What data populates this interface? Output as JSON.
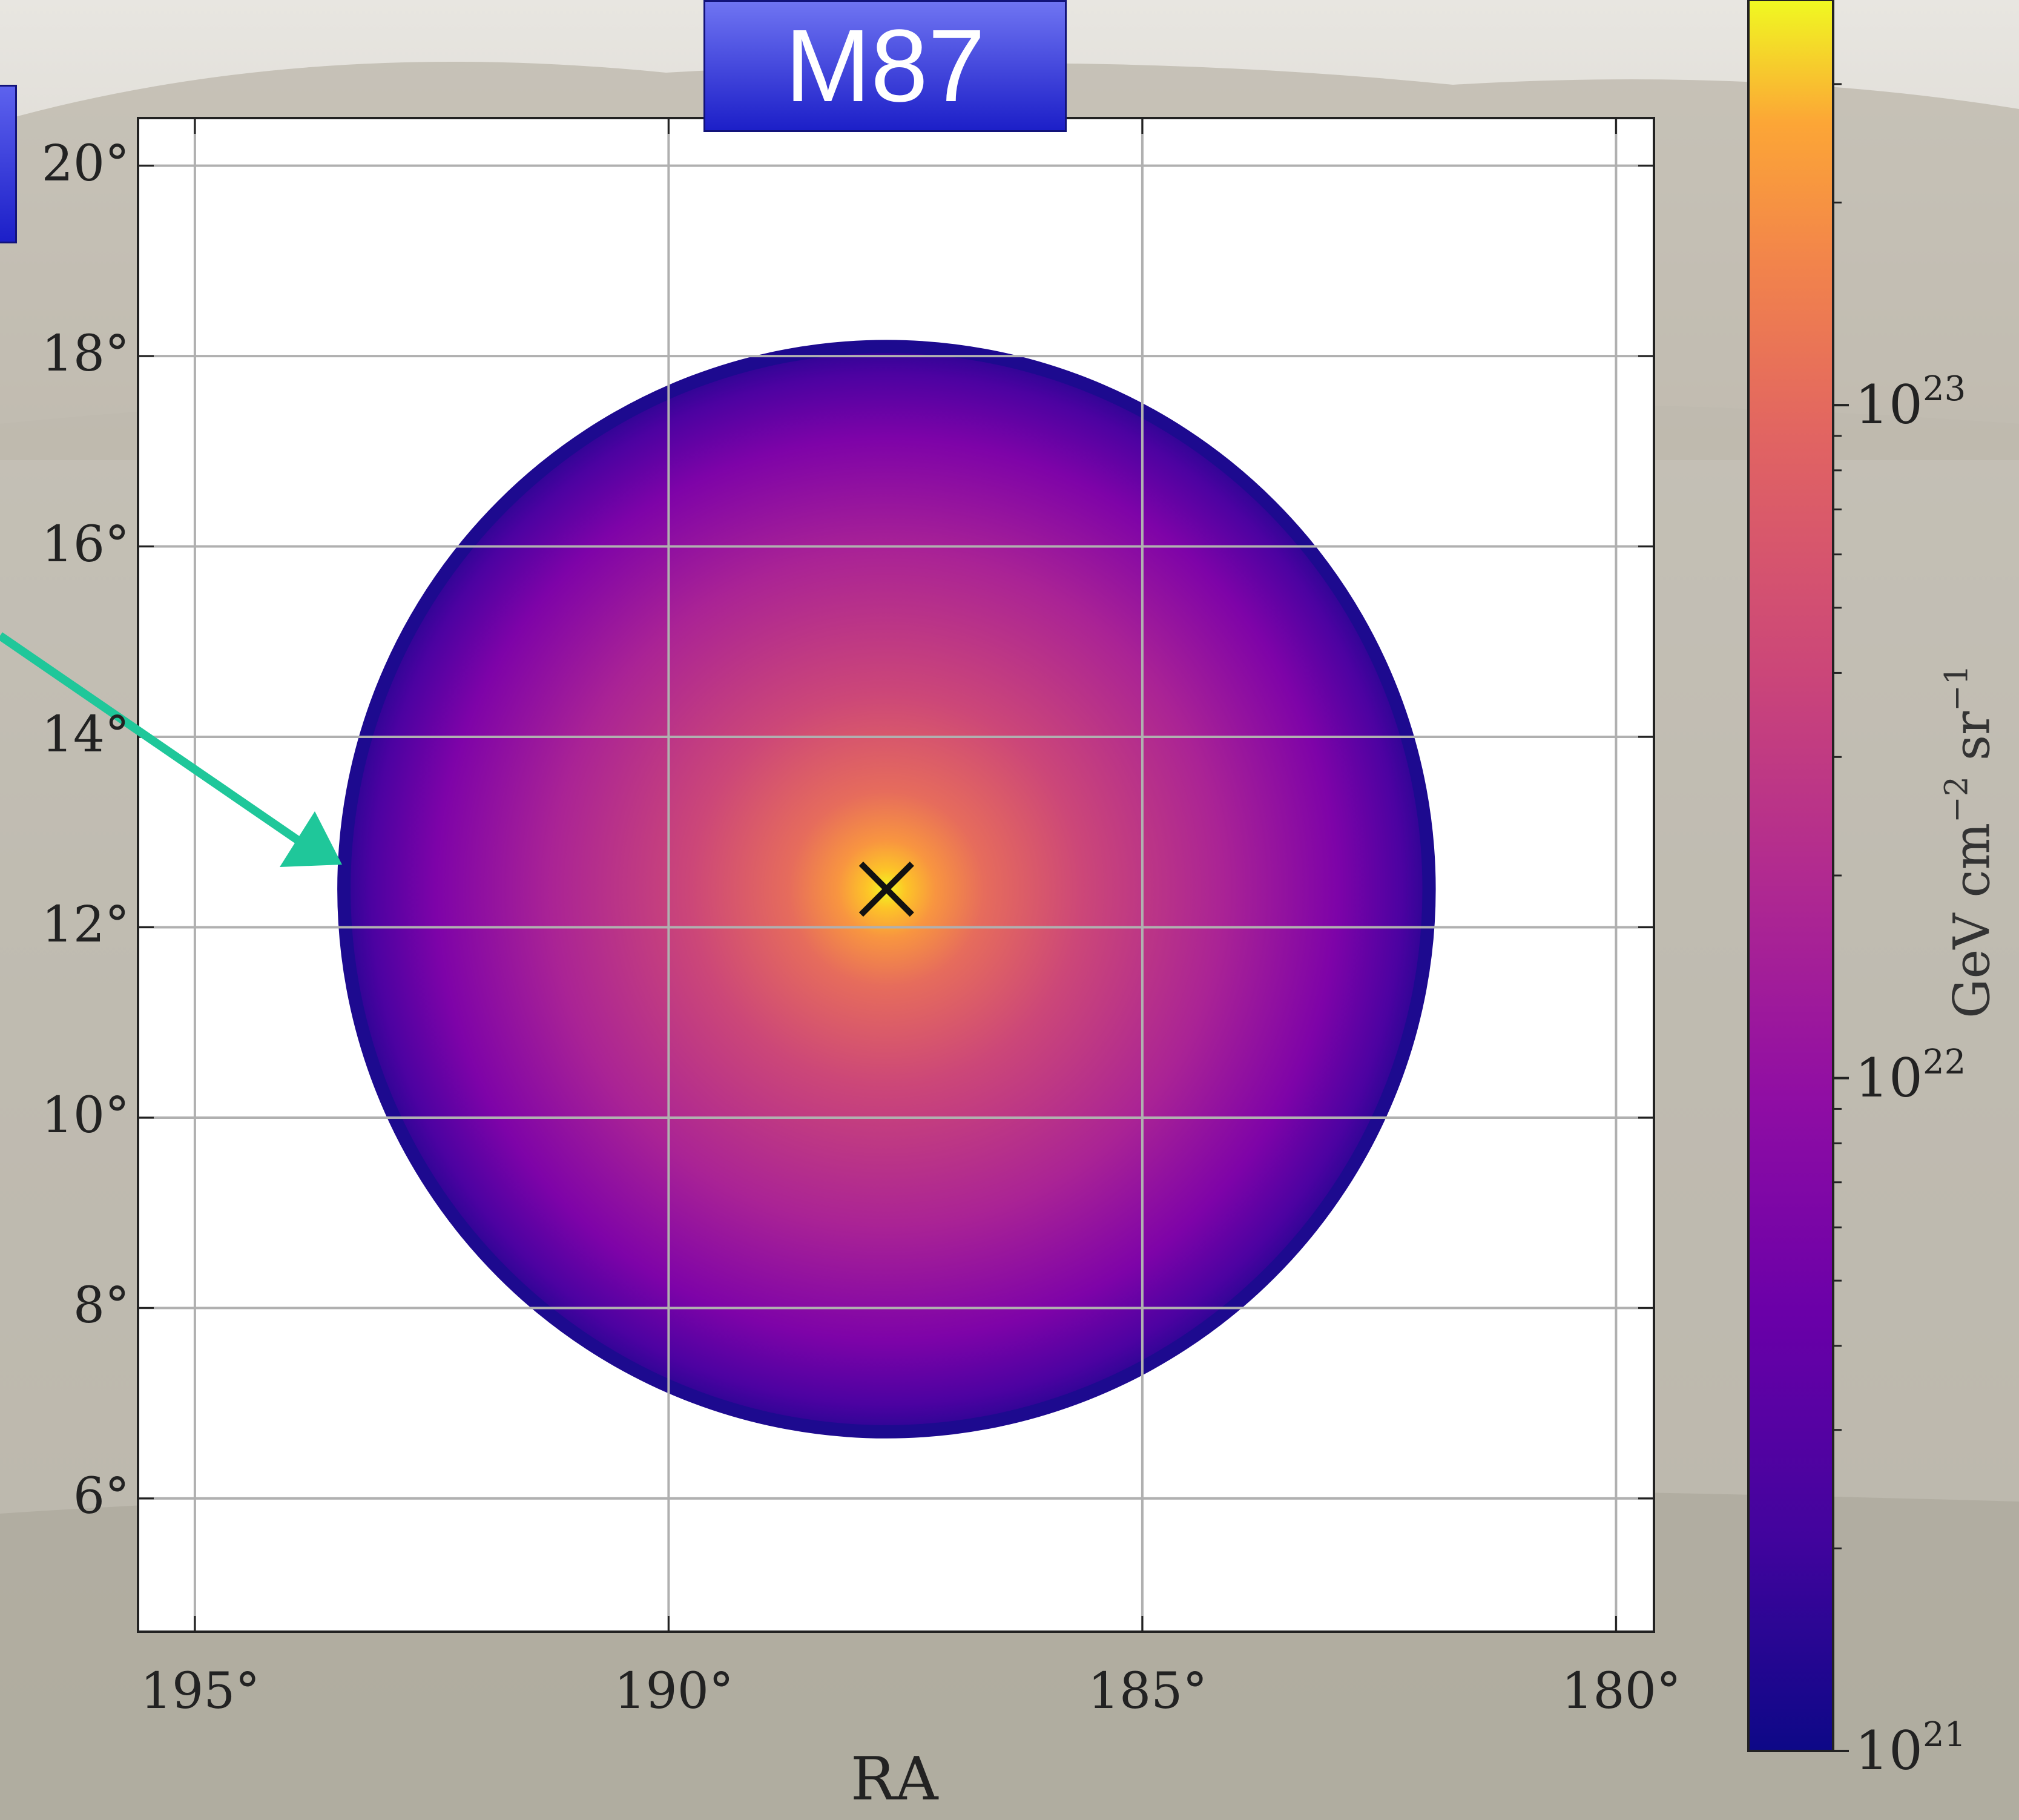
{
  "title": "M87",
  "chart_data": {
    "type": "heatmap",
    "title": "M87",
    "xlabel": "RA",
    "ylabel": "",
    "x_ticks": [
      "195°",
      "190°",
      "185°",
      "180°"
    ],
    "y_ticks": [
      "6°",
      "8°",
      "10°",
      "12°",
      "14°",
      "16°",
      "18°",
      "20°"
    ],
    "xlim": [
      195.6,
      179.6
    ],
    "ylim": [
      4.6,
      20.5
    ],
    "grid": true,
    "center": {
      "ra": 187.7,
      "dec": 12.4,
      "marker": "×"
    },
    "region_radius_deg": 5.7,
    "colorbar": {
      "scale": "log",
      "colormap": "plasma",
      "range": [
        1e+21,
        4e+23
      ],
      "ticks": [
        {
          "base": "10",
          "exp": "21",
          "value": 1e+21
        },
        {
          "base": "10",
          "exp": "22",
          "value": 1e+22
        },
        {
          "base": "10",
          "exp": "23",
          "value": 1e+23
        }
      ],
      "label_main": "GeV cm",
      "label_exp1": "−2",
      "label_mid": " sr",
      "label_exp2": "−1"
    }
  },
  "colors": {
    "arrow": "#1fc79a",
    "title_box_top": "#6f74f2",
    "title_box_bottom": "#1c1fc8"
  }
}
